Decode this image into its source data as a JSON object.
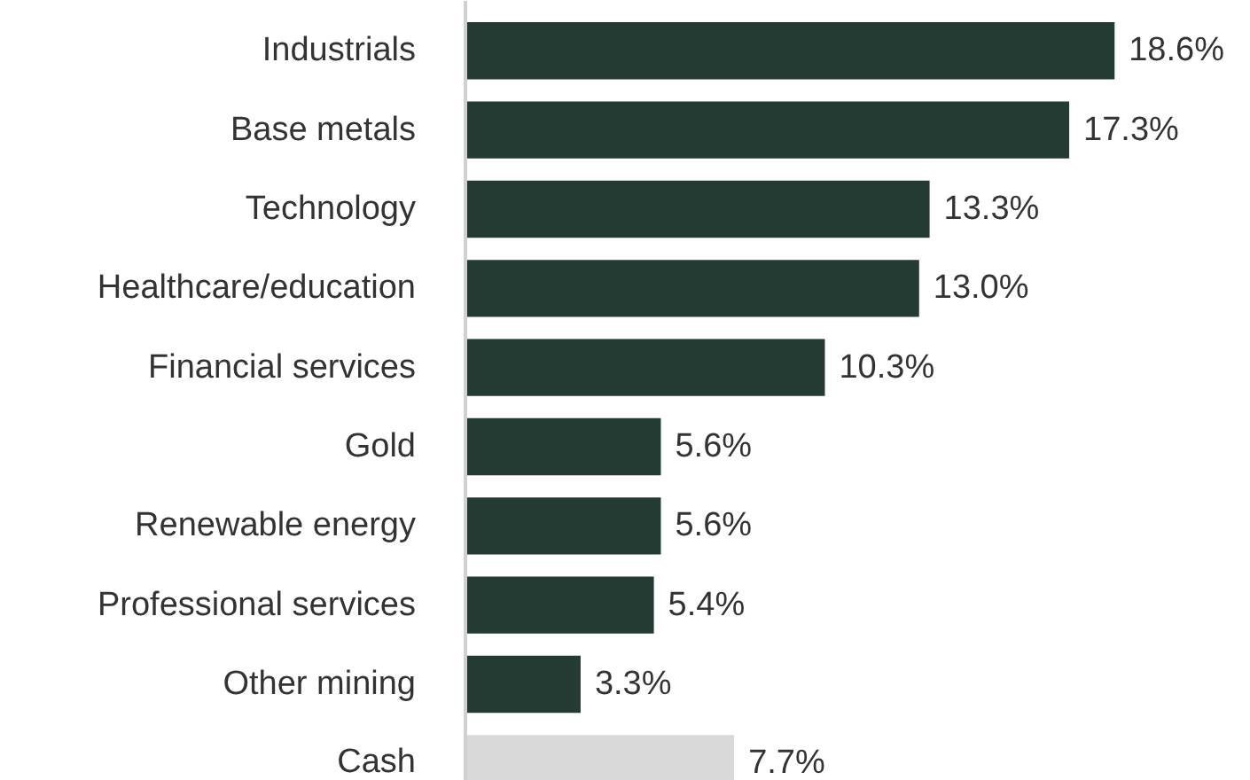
{
  "chart_data": {
    "type": "bar",
    "orientation": "horizontal",
    "categories": [
      "Industrials",
      "Base metals",
      "Technology",
      "Healthcare/education",
      "Financial services",
      "Gold",
      "Renewable energy",
      "Professional services",
      "Other mining",
      "Cash"
    ],
    "values": [
      18.6,
      17.3,
      13.3,
      13.0,
      10.3,
      5.6,
      5.6,
      5.4,
      3.3,
      7.7
    ],
    "value_labels": [
      "18.6%",
      "17.3%",
      "13.3%",
      "13.0%",
      "10.3%",
      "5.6%",
      "5.6%",
      "5.4%",
      "3.3%",
      "7.7%"
    ],
    "colors": [
      "#243b33",
      "#243b33",
      "#243b33",
      "#243b33",
      "#243b33",
      "#243b33",
      "#243b33",
      "#243b33",
      "#243b33",
      "#d9d9d9"
    ]
  }
}
